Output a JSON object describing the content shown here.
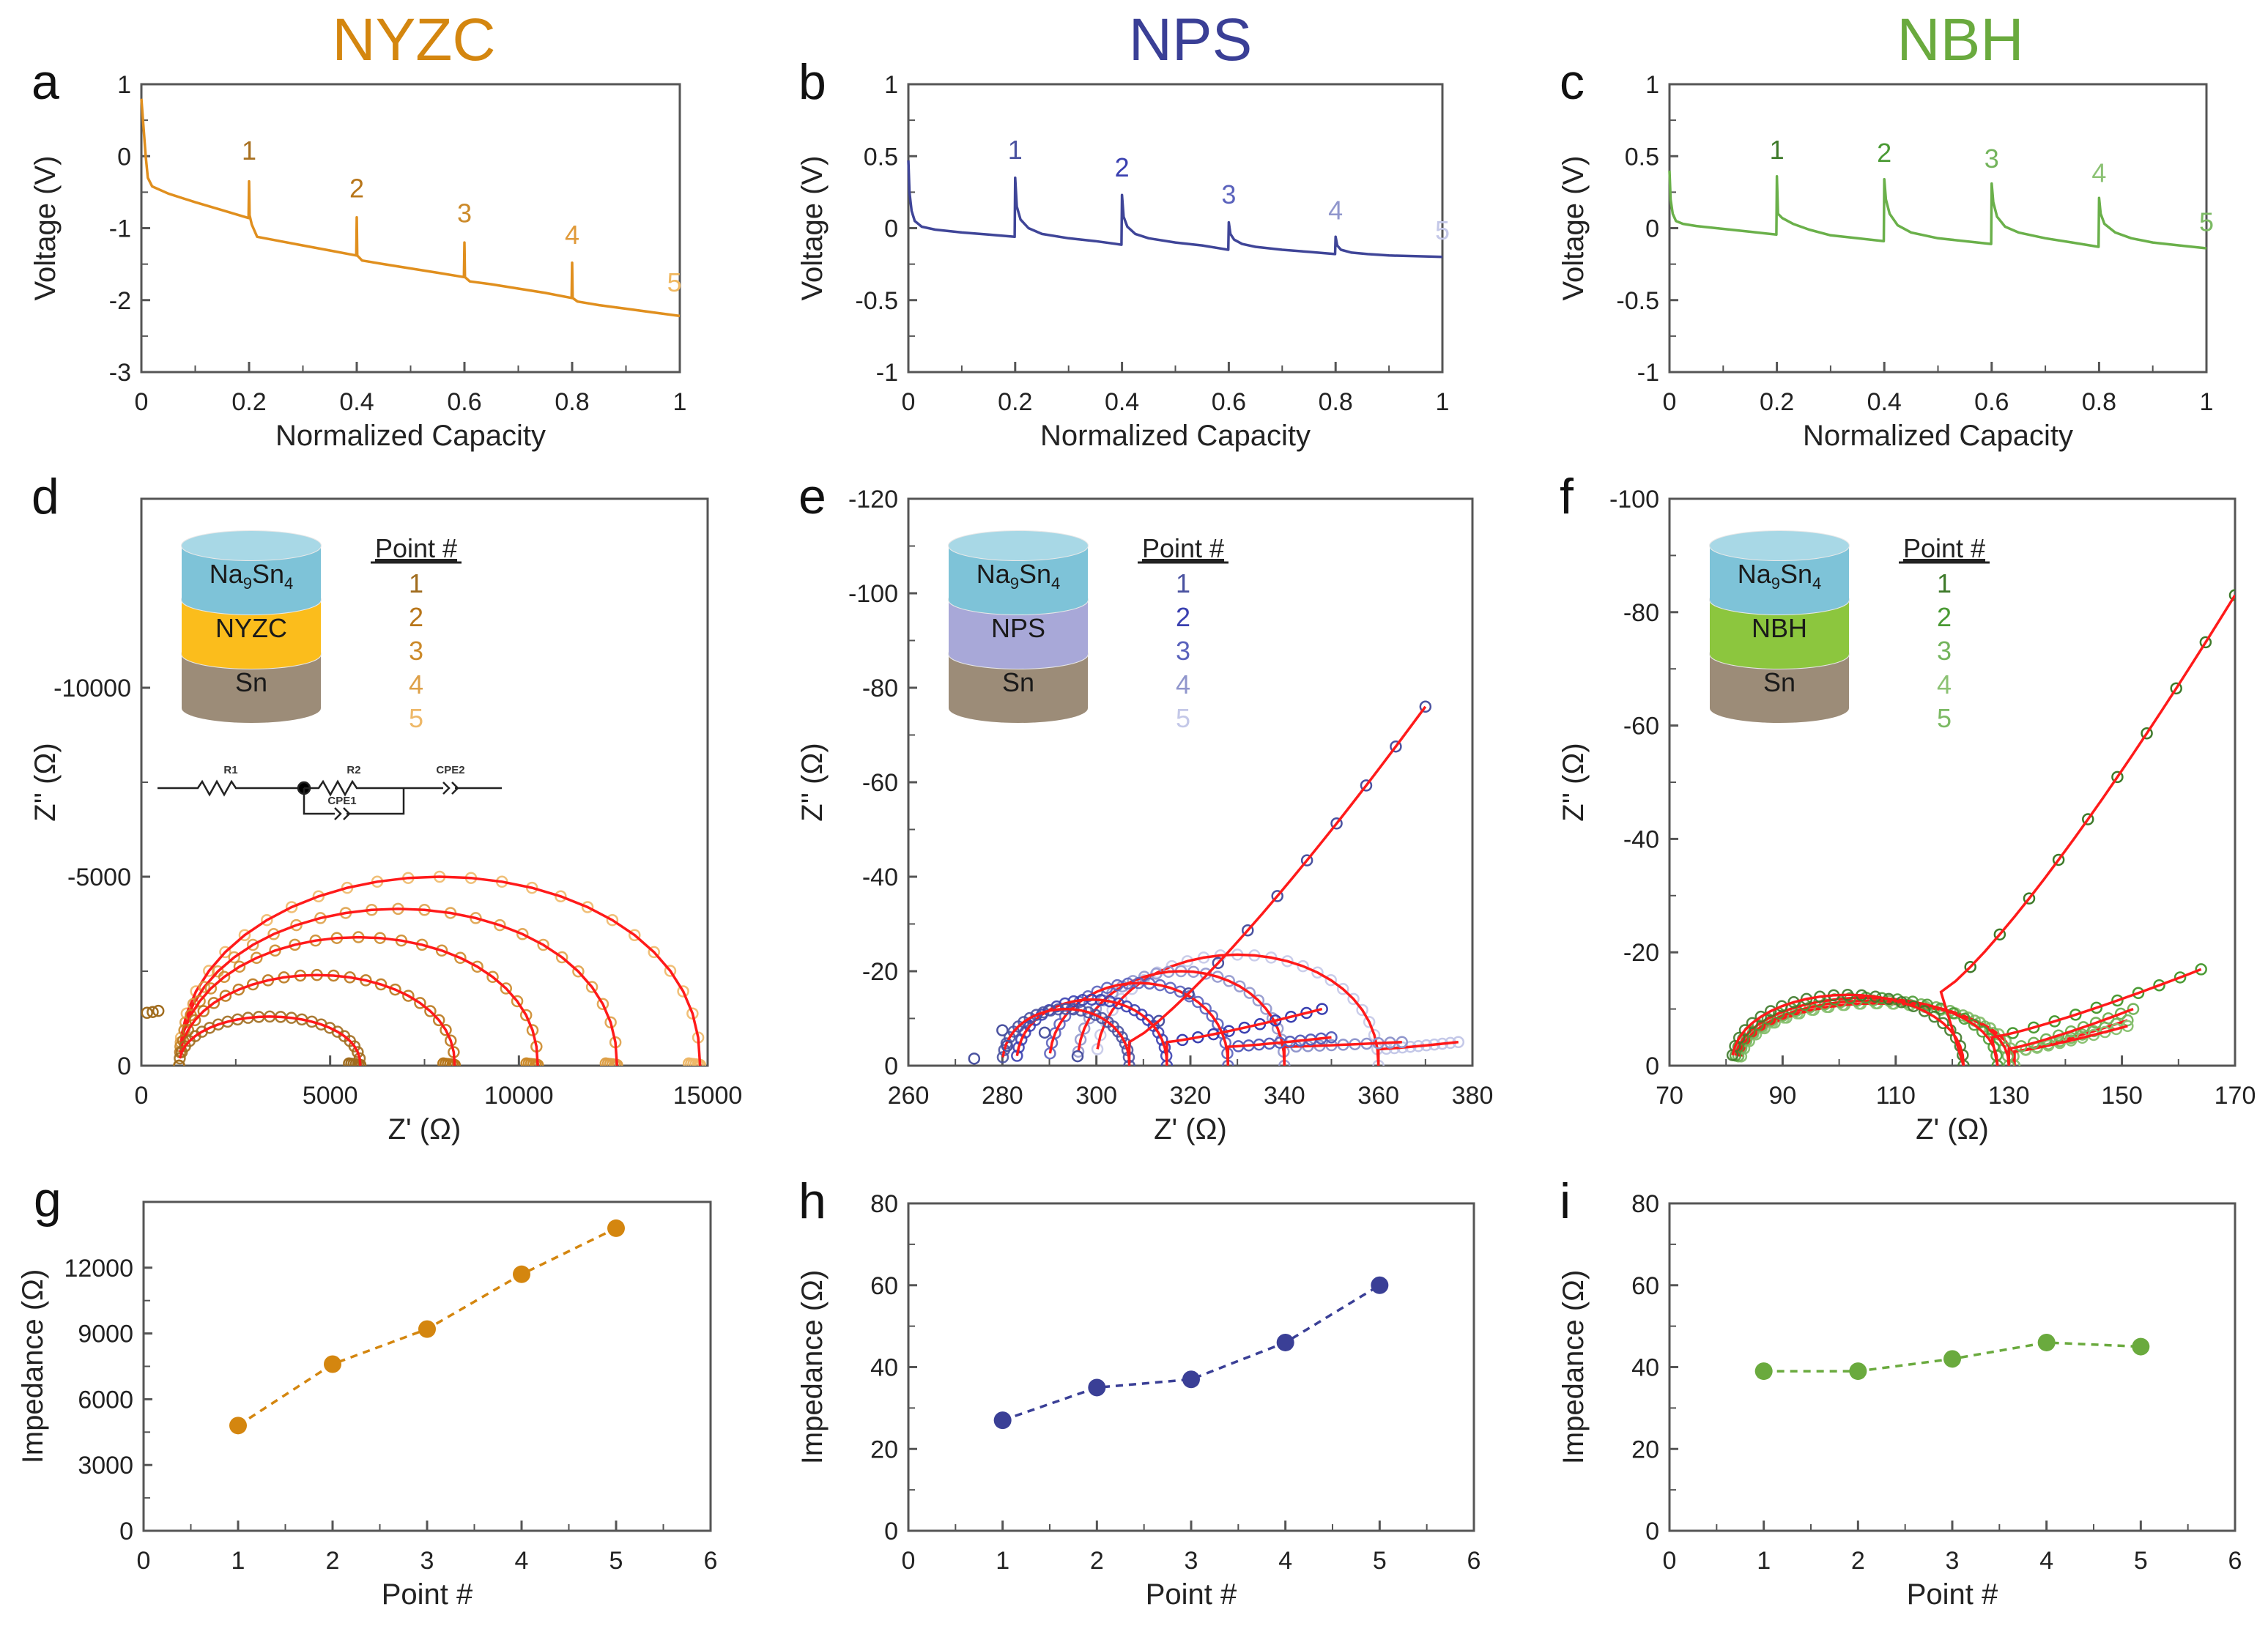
{
  "figure": {
    "column_titles": [
      {
        "text": "NYZC",
        "color": "#d4860f"
      },
      {
        "text": "NPS",
        "color": "#3a3f96"
      },
      {
        "text": "NBH",
        "color": "#6aaa3e"
      }
    ],
    "fit_color": "#ff1a1a"
  },
  "chart_data": [
    {
      "id": "a",
      "panel_letter": "a",
      "type": "line",
      "material": "NYZC",
      "xlabel": "Normalized Capacity",
      "ylabel": "Voltage (V)",
      "xlim": [
        0,
        1
      ],
      "ylim": [
        -3,
        1
      ],
      "xticks": [
        0,
        0.2,
        0.4,
        0.6,
        0.8,
        1
      ],
      "xtick_labels": [
        "0",
        "0.2",
        "0.4",
        "0.6",
        "0.8",
        "1"
      ],
      "yticks": [
        1,
        0,
        -1,
        -2,
        -3
      ],
      "ytick_labels": [
        "1",
        "0",
        "-1",
        "-2",
        "-3"
      ],
      "color": "#e08f1e",
      "x": [
        0,
        0.003,
        0.008,
        0.012,
        0.02,
        0.05,
        0.1,
        0.15,
        0.199,
        0.2,
        0.201,
        0.205,
        0.215,
        0.25,
        0.3,
        0.35,
        0.399,
        0.4,
        0.401,
        0.41,
        0.45,
        0.5,
        0.55,
        0.599,
        0.6,
        0.601,
        0.61,
        0.65,
        0.7,
        0.75,
        0.799,
        0.8,
        0.801,
        0.81,
        0.85,
        0.9,
        0.95,
        1.0
      ],
      "y": [
        0.8,
        0.5,
        0.0,
        -0.3,
        -0.42,
        -0.52,
        -0.64,
        -0.75,
        -0.86,
        -0.35,
        -0.82,
        -0.95,
        -1.12,
        -1.17,
        -1.24,
        -1.31,
        -1.38,
        -0.85,
        -1.38,
        -1.45,
        -1.5,
        -1.56,
        -1.62,
        -1.68,
        -1.2,
        -1.68,
        -1.74,
        -1.78,
        -1.84,
        -1.9,
        -1.97,
        -1.48,
        -1.97,
        -2.02,
        -2.07,
        -2.12,
        -2.17,
        -2.22
      ],
      "annotations": [
        {
          "text": "1",
          "x": 0.2,
          "y": -0.05,
          "color": "#a87020"
        },
        {
          "text": "2",
          "x": 0.4,
          "y": -0.57,
          "color": "#b8761a"
        },
        {
          "text": "3",
          "x": 0.6,
          "y": -0.92,
          "color": "#cc8a2a"
        },
        {
          "text": "4",
          "x": 0.8,
          "y": -1.22,
          "color": "#e09a3a"
        },
        {
          "text": "5",
          "x": 0.99,
          "y": -1.88,
          "color": "#f0b860"
        }
      ]
    },
    {
      "id": "b",
      "panel_letter": "b",
      "type": "line",
      "material": "NPS",
      "xlabel": "Normalized Capacity",
      "ylabel": "Voltage (V)",
      "xlim": [
        0,
        1
      ],
      "ylim": [
        -1,
        1
      ],
      "xticks": [
        0,
        0.2,
        0.4,
        0.6,
        0.8,
        1
      ],
      "xtick_labels": [
        "0",
        "0.2",
        "0.4",
        "0.6",
        "0.8",
        "1"
      ],
      "yticks": [
        1,
        0.5,
        0,
        -0.5,
        -1
      ],
      "ytick_labels": [
        "1",
        "0.5",
        "0",
        "-0.5",
        "-1"
      ],
      "color": "#3f4598",
      "x": [
        0,
        0.002,
        0.006,
        0.012,
        0.025,
        0.05,
        0.1,
        0.15,
        0.199,
        0.2,
        0.203,
        0.21,
        0.225,
        0.25,
        0.3,
        0.35,
        0.399,
        0.4,
        0.403,
        0.41,
        0.425,
        0.45,
        0.5,
        0.55,
        0.599,
        0.6,
        0.603,
        0.61,
        0.625,
        0.65,
        0.7,
        0.75,
        0.799,
        0.8,
        0.803,
        0.81,
        0.83,
        0.86,
        0.9,
        0.95,
        1.0
      ],
      "y": [
        0.47,
        0.25,
        0.12,
        0.05,
        0.01,
        -0.01,
        -0.03,
        -0.045,
        -0.06,
        0.35,
        0.15,
        0.06,
        0.0,
        -0.04,
        -0.07,
        -0.09,
        -0.115,
        0.23,
        0.08,
        0.01,
        -0.04,
        -0.07,
        -0.1,
        -0.12,
        -0.15,
        0.04,
        -0.04,
        -0.08,
        -0.11,
        -0.13,
        -0.15,
        -0.165,
        -0.18,
        -0.06,
        -0.12,
        -0.15,
        -0.17,
        -0.18,
        -0.19,
        -0.195,
        -0.2
      ],
      "annotations": [
        {
          "text": "1",
          "x": 0.2,
          "y": 0.48,
          "color": "#4a52a0"
        },
        {
          "text": "2",
          "x": 0.4,
          "y": 0.36,
          "color": "#3a40b0"
        },
        {
          "text": "3",
          "x": 0.6,
          "y": 0.17,
          "color": "#5a62bc"
        },
        {
          "text": "4",
          "x": 0.8,
          "y": 0.06,
          "color": "#9096cc"
        },
        {
          "text": "5",
          "x": 1.0,
          "y": -0.08,
          "color": "#c4c8e8"
        }
      ]
    },
    {
      "id": "c",
      "panel_letter": "c",
      "type": "line",
      "material": "NBH",
      "xlabel": "Normalized Capacity",
      "ylabel": "Voltage (V)",
      "xlim": [
        0,
        1
      ],
      "ylim": [
        -1,
        1
      ],
      "xticks": [
        0,
        0.2,
        0.4,
        0.6,
        0.8,
        1
      ],
      "xtick_labels": [
        "0",
        "0.2",
        "0.4",
        "0.6",
        "0.8",
        "1"
      ],
      "yticks": [
        1,
        0.5,
        0,
        -0.5,
        -1
      ],
      "ytick_labels": [
        "1",
        "0.5",
        "0",
        "-0.5",
        "-1"
      ],
      "color": "#6ab04a",
      "x": [
        0,
        0.002,
        0.006,
        0.012,
        0.025,
        0.05,
        0.1,
        0.15,
        0.199,
        0.2,
        0.202,
        0.21,
        0.23,
        0.26,
        0.3,
        0.35,
        0.399,
        0.4,
        0.403,
        0.41,
        0.425,
        0.45,
        0.5,
        0.55,
        0.599,
        0.6,
        0.603,
        0.61,
        0.625,
        0.65,
        0.7,
        0.75,
        0.799,
        0.8,
        0.803,
        0.81,
        0.83,
        0.86,
        0.9,
        0.95,
        1.0
      ],
      "y": [
        0.4,
        0.2,
        0.1,
        0.05,
        0.03,
        0.015,
        -0.005,
        -0.025,
        -0.045,
        0.36,
        0.1,
        0.07,
        0.03,
        -0.01,
        -0.05,
        -0.07,
        -0.09,
        0.34,
        0.2,
        0.1,
        0.02,
        -0.03,
        -0.07,
        -0.09,
        -0.11,
        0.31,
        0.18,
        0.08,
        0.01,
        -0.03,
        -0.07,
        -0.1,
        -0.13,
        0.21,
        0.1,
        0.03,
        -0.03,
        -0.07,
        -0.1,
        -0.12,
        -0.14
      ],
      "annotations": [
        {
          "text": "1",
          "x": 0.2,
          "y": 0.48,
          "color": "#3e7a2a"
        },
        {
          "text": "2",
          "x": 0.4,
          "y": 0.46,
          "color": "#4a9a34"
        },
        {
          "text": "3",
          "x": 0.6,
          "y": 0.42,
          "color": "#74b45c"
        },
        {
          "text": "4",
          "x": 0.8,
          "y": 0.32,
          "color": "#8cc274"
        },
        {
          "text": "5",
          "x": 1.0,
          "y": -0.02,
          "color": "#7cba64"
        }
      ]
    },
    {
      "id": "d",
      "panel_letter": "d",
      "type": "scatter",
      "material": "NYZC",
      "xlabel": "Z' (Ω)",
      "ylabel": "Z'' (Ω)",
      "xlim": [
        0,
        15000
      ],
      "ylim": [
        0,
        -15000
      ],
      "xticks": [
        0,
        5000,
        10000,
        15000
      ],
      "xtick_labels": [
        "0",
        "5000",
        "10000",
        "15000"
      ],
      "yticks": [
        0,
        -5000,
        -10000
      ],
      "ytick_labels": [
        "0",
        "-5000",
        "-10000"
      ],
      "legend_title": "Point #",
      "cell_stack": [
        {
          "label": "Na9Sn4",
          "main": "Na",
          "sub1": "9",
          "mid": "Sn",
          "sub2": "4",
          "color": "#7ec3d8"
        },
        {
          "label": "NYZC",
          "color": "#fbbd1c"
        },
        {
          "label": "Sn",
          "color": "#9c8c78"
        }
      ],
      "circuit": {
        "elements": [
          "R1",
          "R2",
          "CPE1",
          "CPE2"
        ]
      },
      "series": [
        {
          "name": "1",
          "color": "#a06c1e",
          "r0": 1000,
          "r_end": 5800,
          "peak": -1300,
          "tail": false
        },
        {
          "name": "2",
          "color": "#b8761a",
          "r0": 1000,
          "r_end": 8300,
          "peak": -2400,
          "tail": false
        },
        {
          "name": "3",
          "color": "#cc8a2a",
          "r0": 1000,
          "r_end": 10500,
          "peak": -3400,
          "tail": false
        },
        {
          "name": "4",
          "color": "#dea048",
          "r0": 1000,
          "r_end": 12600,
          "peak": -4150,
          "tail": false
        },
        {
          "name": "5",
          "color": "#eeb868",
          "r0": 1000,
          "r_end": 14800,
          "peak": -5000,
          "tail": false
        }
      ],
      "extra_points": [
        [
          150,
          -1400
        ],
        [
          300,
          -1420
        ],
        [
          450,
          -1450
        ]
      ]
    },
    {
      "id": "e",
      "panel_letter": "e",
      "type": "scatter",
      "material": "NPS",
      "xlabel": "Z' (Ω)",
      "ylabel": "Z'' (Ω)",
      "xlim": [
        260,
        380
      ],
      "ylim": [
        0,
        -120
      ],
      "xticks": [
        260,
        280,
        300,
        320,
        340,
        360,
        380
      ],
      "xtick_labels": [
        "260",
        "280",
        "300",
        "320",
        "340",
        "360",
        "380"
      ],
      "yticks": [
        0,
        -20,
        -40,
        -60,
        -80,
        -100,
        -120
      ],
      "ytick_labels": [
        "0",
        "-20",
        "-40",
        "-60",
        "-80",
        "-100",
        "-120"
      ],
      "legend_title": "Point #",
      "cell_stack": [
        {
          "label": "Na9Sn4",
          "main": "Na",
          "sub1": "9",
          "mid": "Sn",
          "sub2": "4",
          "color": "#7ec3d8"
        },
        {
          "label": "NPS",
          "color": "#a8a8d8"
        },
        {
          "label": "Sn",
          "color": "#9c8c78"
        }
      ],
      "series": [
        {
          "name": "1",
          "color": "#4a52a0",
          "r0": 280,
          "r_end": 307,
          "peak": -12,
          "tail_end": [
            370,
            -76
          ],
          "tail_start": [
            307,
            -5
          ]
        },
        {
          "name": "2",
          "color": "#3a40b0",
          "r0": 283,
          "r_end": 315,
          "peak": -14,
          "tail_end": [
            348,
            -12
          ],
          "tail_start": [
            315,
            -5
          ]
        },
        {
          "name": "3",
          "color": "#5a62bc",
          "r0": 290,
          "r_end": 328,
          "peak": -17.5,
          "tail_end": [
            350,
            -6
          ],
          "tail_start": [
            328,
            -4
          ]
        },
        {
          "name": "4",
          "color": "#9096cc",
          "r0": 296,
          "r_end": 340,
          "peak": -20,
          "tail_end": [
            365,
            -5
          ],
          "tail_start": [
            340,
            -4
          ]
        },
        {
          "name": "5",
          "color": "#c4c8e8",
          "r0": 300,
          "r_end": 360,
          "peak": -23.5,
          "tail_end": [
            377,
            -5
          ],
          "tail_start": [
            360,
            -3.5
          ]
        }
      ],
      "extra_points": [
        [
          274,
          -1.5
        ],
        [
          280,
          -7.5
        ],
        [
          281,
          -4.2
        ],
        [
          289,
          -7
        ],
        [
          296,
          -2
        ]
      ]
    },
    {
      "id": "f",
      "panel_letter": "f",
      "type": "scatter",
      "material": "NBH",
      "xlabel": "Z' (Ω)",
      "ylabel": "Z'' (Ω)",
      "xlim": [
        70,
        170
      ],
      "ylim": [
        0,
        -100
      ],
      "xticks": [
        70,
        90,
        110,
        130,
        150,
        170
      ],
      "xtick_labels": [
        "70",
        "90",
        "110",
        "130",
        "150",
        "170"
      ],
      "yticks": [
        0,
        -20,
        -40,
        -60,
        -80,
        -100
      ],
      "ytick_labels": [
        "0",
        "-20",
        "-40",
        "-60",
        "-80",
        "-100"
      ],
      "legend_title": "Point #",
      "cell_stack": [
        {
          "label": "Na9Sn4",
          "main": "Na",
          "sub1": "9",
          "mid": "Sn",
          "sub2": "4",
          "color": "#7ec3d8"
        },
        {
          "label": "NBH",
          "color": "#8cc63e"
        },
        {
          "label": "Sn",
          "color": "#9c8c78"
        }
      ],
      "series": [
        {
          "name": "1",
          "color": "#3e7a2a",
          "r0": 81,
          "r_end": 122,
          "peak": -12.5,
          "tail_end": [
            170,
            -83
          ],
          "tail_start": [
            118,
            -13
          ]
        },
        {
          "name": "2",
          "color": "#4a9a34",
          "r0": 81.5,
          "r_end": 128,
          "peak": -12,
          "tail_end": [
            164,
            -17
          ],
          "tail_start": [
            127,
            -5
          ]
        },
        {
          "name": "3",
          "color": "#74b45c",
          "r0": 82,
          "r_end": 130,
          "peak": -11.5,
          "tail_end": [
            152,
            -10
          ],
          "tail_start": [
            130,
            -3
          ]
        },
        {
          "name": "4",
          "color": "#8cc274",
          "r0": 82,
          "r_end": 131,
          "peak": -11,
          "tail_end": [
            151,
            -7
          ],
          "tail_start": [
            131,
            -2.5
          ]
        },
        {
          "name": "5",
          "color": "#7cba64",
          "r0": 82.5,
          "r_end": 131,
          "peak": -11,
          "tail_end": [
            151,
            -8
          ],
          "tail_start": [
            131,
            -2.5
          ]
        }
      ],
      "extra_points": []
    },
    {
      "id": "g",
      "panel_letter": "g",
      "type": "line",
      "material": "NYZC",
      "xlabel": "Point #",
      "ylabel": "Impedance (Ω)",
      "xlim": [
        0,
        6
      ],
      "ylim": [
        0,
        15000
      ],
      "xticks": [
        0,
        1,
        2,
        3,
        4,
        5,
        6
      ],
      "xtick_labels": [
        "0",
        "1",
        "2",
        "3",
        "4",
        "5",
        "6"
      ],
      "yticks": [
        0,
        3000,
        6000,
        9000,
        12000
      ],
      "ytick_labels": [
        "0",
        "3000",
        "6000",
        "9000",
        "12000"
      ],
      "color": "#d4860f",
      "x": [
        1,
        2,
        3,
        4,
        5
      ],
      "values": [
        4800,
        7600,
        9200,
        11700,
        13800
      ]
    },
    {
      "id": "h",
      "panel_letter": "h",
      "type": "line",
      "material": "NPS",
      "xlabel": "Point #",
      "ylabel": "Impedance (Ω)",
      "xlim": [
        0,
        6
      ],
      "ylim": [
        0,
        80
      ],
      "xticks": [
        0,
        1,
        2,
        3,
        4,
        5,
        6
      ],
      "xtick_labels": [
        "0",
        "1",
        "2",
        "3",
        "4",
        "5",
        "6"
      ],
      "yticks": [
        0,
        20,
        40,
        60,
        80
      ],
      "ytick_labels": [
        "0",
        "20",
        "40",
        "60",
        "80"
      ],
      "color": "#3a3f96",
      "x": [
        1,
        2,
        3,
        4,
        5
      ],
      "values": [
        27,
        35,
        37,
        46,
        60
      ]
    },
    {
      "id": "i",
      "panel_letter": "i",
      "type": "line",
      "material": "NBH",
      "xlabel": "Point #",
      "ylabel": "Impedance (Ω)",
      "xlim": [
        0,
        6
      ],
      "ylim": [
        0,
        80
      ],
      "xticks": [
        0,
        1,
        2,
        3,
        4,
        5,
        6
      ],
      "xtick_labels": [
        "0",
        "1",
        "2",
        "3",
        "4",
        "5",
        "6"
      ],
      "yticks": [
        0,
        20,
        40,
        60,
        80
      ],
      "ytick_labels": [
        "0",
        "20",
        "40",
        "60",
        "80"
      ],
      "color": "#6aaa3e",
      "x": [
        1,
        2,
        3,
        4,
        5
      ],
      "values": [
        39,
        39,
        42,
        46,
        45
      ]
    }
  ]
}
